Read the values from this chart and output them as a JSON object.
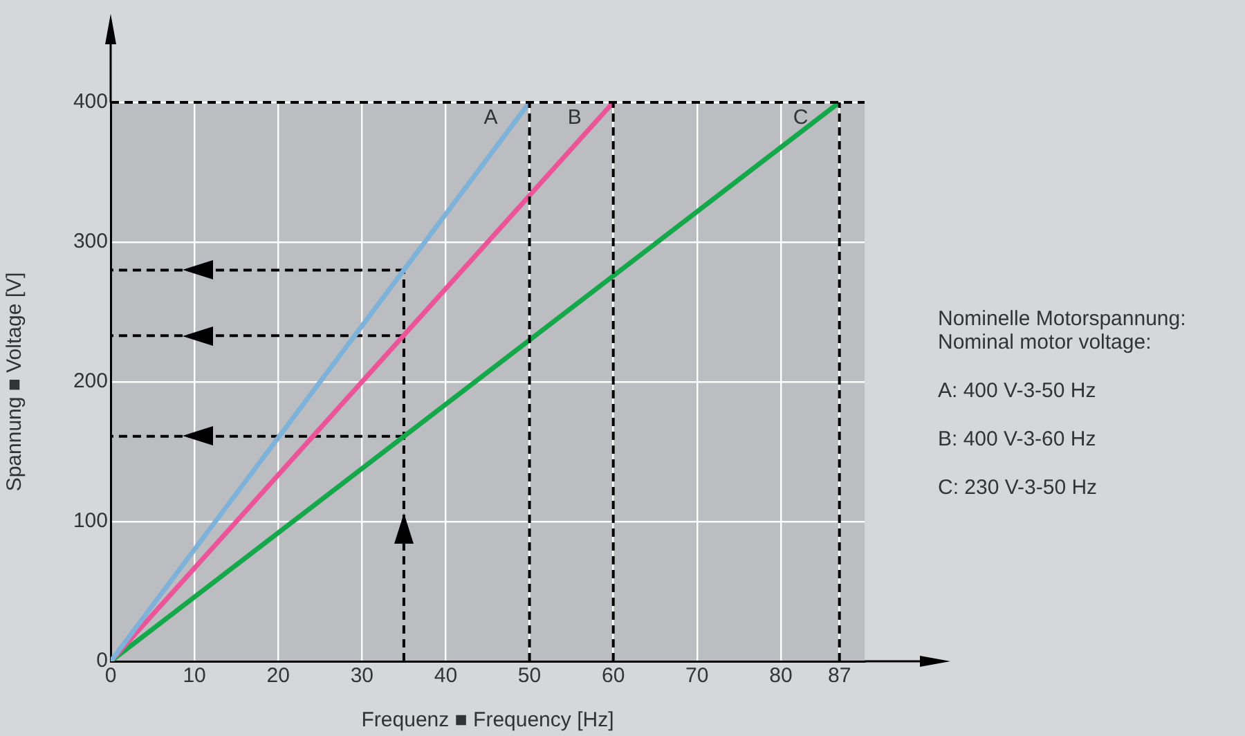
{
  "chart_data": {
    "type": "line",
    "xlabel": "Frequenz ■ Frequency [Hz]",
    "ylabel": "Spannung ■ Voltage [V]",
    "xlim": [
      0,
      90
    ],
    "xticks": [
      0,
      10,
      20,
      30,
      40,
      50,
      60,
      70,
      80,
      87
    ],
    "ylim": [
      0,
      400
    ],
    "yticks": [
      0,
      100,
      200,
      300,
      400
    ],
    "grid": true,
    "legend": false,
    "marker": "none",
    "series": [
      {
        "name": "A",
        "color": "#7fb2d8",
        "x": [
          0,
          50
        ],
        "values": [
          0,
          400
        ]
      },
      {
        "name": "B",
        "color": "#ec5499",
        "x": [
          0,
          60
        ],
        "values": [
          0,
          400
        ]
      },
      {
        "name": "C",
        "color": "#15a84a",
        "x": [
          0,
          87
        ],
        "values": [
          0,
          400
        ]
      },
      {
        "color": "#000000",
        "line_style": "dashed",
        "x": [
          35,
          35
        ],
        "values": [
          0,
          280
        ]
      },
      {
        "color": "#000000",
        "line_style": "dashed",
        "x": [
          35,
          0
        ],
        "values": [
          280,
          280
        ]
      },
      {
        "color": "#000000",
        "line_style": "dashed",
        "x": [
          35,
          0
        ],
        "values": [
          233,
          233
        ]
      },
      {
        "color": "#000000",
        "line_style": "dashed",
        "x": [
          35,
          0
        ],
        "values": [
          161,
          161
        ]
      }
    ],
    "ref_lines": [
      {
        "axis": "y",
        "value": 400,
        "color": "#000000",
        "line_style": "dashed"
      },
      {
        "axis": "x",
        "value": 50,
        "color": "#000000",
        "line_style": "dashed"
      },
      {
        "axis": "x",
        "value": 60,
        "color": "#000000",
        "line_style": "dashed"
      },
      {
        "axis": "x",
        "value": 87,
        "color": "#000000",
        "line_style": "dashed"
      }
    ],
    "annotations": [
      "Nominelle Motorspannung:",
      "Nominal motor voltage:",
      "A:  400 V-3-50 Hz",
      "B:  400 V-3-60 Hz",
      "C:  230 V-3-50 Hz"
    ]
  }
}
